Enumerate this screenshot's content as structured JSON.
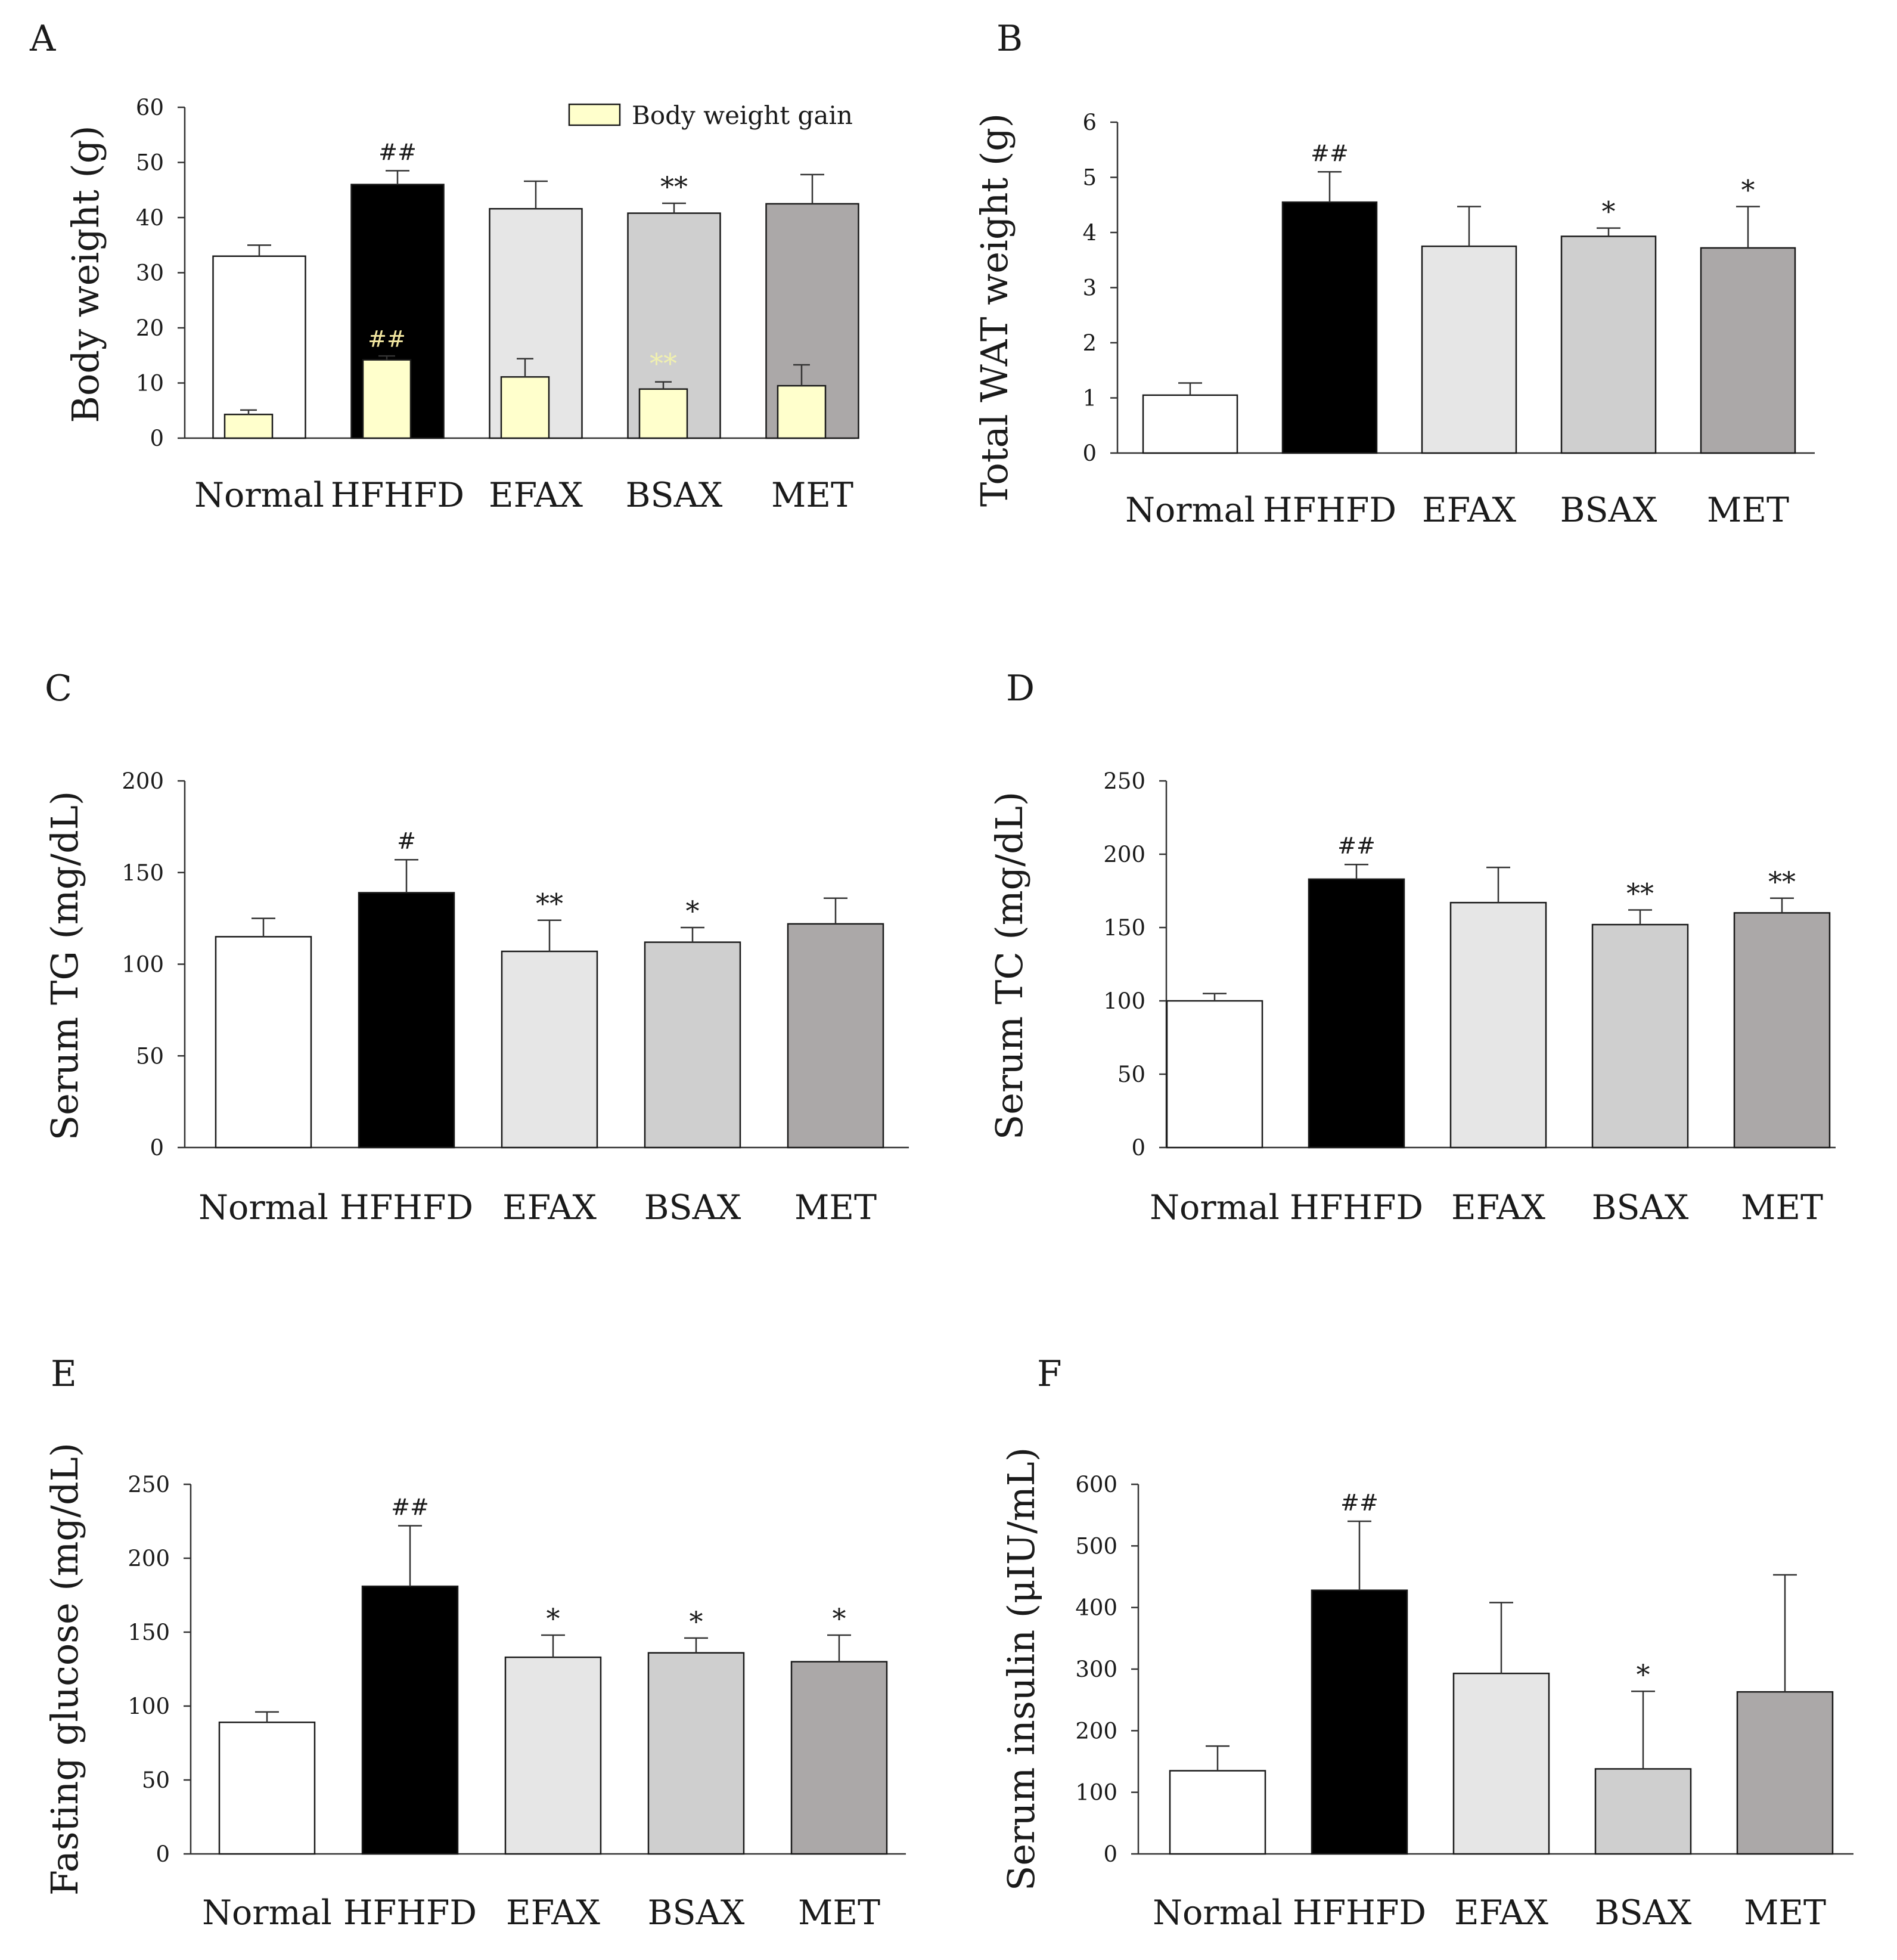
{
  "legend": {
    "label": "Body weight gain",
    "swatch_color": "#ffffcc"
  },
  "bar_colors": [
    "#ffffff",
    "#000000",
    "#e6e6e6",
    "#cfcfcf",
    "#aba8a8"
  ],
  "chart_data": [
    {
      "panel": "A",
      "type": "bar",
      "ylabel": "Body weight (g)",
      "ylim": [
        0,
        60
      ],
      "yticks": [
        0,
        10,
        20,
        30,
        40,
        50,
        60
      ],
      "categories": [
        "Normal",
        "HFHFD",
        "EFAX",
        "BSAX",
        "MET"
      ],
      "values": [
        33.0,
        46.0,
        41.6,
        40.8,
        42.5
      ],
      "errors": [
        2.0,
        2.5,
        5.0,
        1.8,
        5.3
      ],
      "annotations": [
        "",
        "##",
        "",
        "**",
        ""
      ],
      "gain_series": {
        "name": "Body weight gain",
        "values": [
          4.3,
          14.2,
          11.1,
          8.9,
          9.5
        ],
        "errors": [
          0.8,
          0.7,
          3.3,
          1.3,
          3.8
        ],
        "annotations": [
          "",
          "##",
          "",
          "**",
          ""
        ]
      }
    },
    {
      "panel": "B",
      "type": "bar",
      "ylabel": "Total WAT weight (g)",
      "ylim": [
        0,
        6
      ],
      "yticks": [
        0,
        1,
        2,
        3,
        4,
        5,
        6
      ],
      "categories": [
        "Normal",
        "HFHFD",
        "EFAX",
        "BSAX",
        "MET"
      ],
      "values": [
        1.05,
        4.55,
        3.75,
        3.93,
        3.72
      ],
      "errors": [
        0.22,
        0.55,
        0.72,
        0.15,
        0.75
      ],
      "annotations": [
        "",
        "##",
        "",
        "*",
        "*"
      ]
    },
    {
      "panel": "C",
      "type": "bar",
      "ylabel": "Serum TG (mg/dL)",
      "ylim": [
        0,
        200
      ],
      "yticks": [
        0,
        50,
        100,
        150,
        200
      ],
      "categories": [
        "Normal",
        "HFHFD",
        "EFAX",
        "BSAX",
        "MET"
      ],
      "values": [
        115,
        139,
        107,
        112,
        122
      ],
      "errors": [
        10,
        18,
        17,
        8,
        14
      ],
      "annotations": [
        "",
        "#",
        "**",
        "*",
        ""
      ]
    },
    {
      "panel": "D",
      "type": "bar",
      "ylabel": "Serum TC (mg/dL)",
      "ylim": [
        0,
        250
      ],
      "yticks": [
        0,
        50,
        100,
        150,
        200,
        250
      ],
      "categories": [
        "Normal",
        "HFHFD",
        "EFAX",
        "BSAX",
        "MET"
      ],
      "values": [
        100,
        183,
        167,
        152,
        160
      ],
      "errors": [
        5,
        10,
        24,
        10,
        10
      ],
      "annotations": [
        "",
        "##",
        "",
        "**",
        "**"
      ]
    },
    {
      "panel": "E",
      "type": "bar",
      "ylabel": "Fasting glucose (mg/dL)",
      "ylim": [
        0,
        250
      ],
      "yticks": [
        0,
        50,
        100,
        150,
        200,
        250
      ],
      "categories": [
        "Normal",
        "HFHFD",
        "EFAX",
        "BSAX",
        "MET"
      ],
      "values": [
        89,
        181,
        133,
        136,
        130
      ],
      "errors": [
        7,
        41,
        15,
        10,
        18
      ],
      "annotations": [
        "",
        "##",
        "*",
        "*",
        "*"
      ]
    },
    {
      "panel": "F",
      "type": "bar",
      "ylabel": "Serum insulin (μIU/mL)",
      "ylim": [
        0,
        600
      ],
      "yticks": [
        0,
        100,
        200,
        300,
        400,
        500,
        600
      ],
      "categories": [
        "Normal",
        "HFHFD",
        "EFAX",
        "BSAX",
        "MET"
      ],
      "values": [
        135,
        428,
        293,
        138,
        263
      ],
      "errors": [
        40,
        112,
        115,
        126,
        190
      ],
      "annotations": [
        "",
        "##",
        "",
        "*",
        ""
      ]
    }
  ]
}
